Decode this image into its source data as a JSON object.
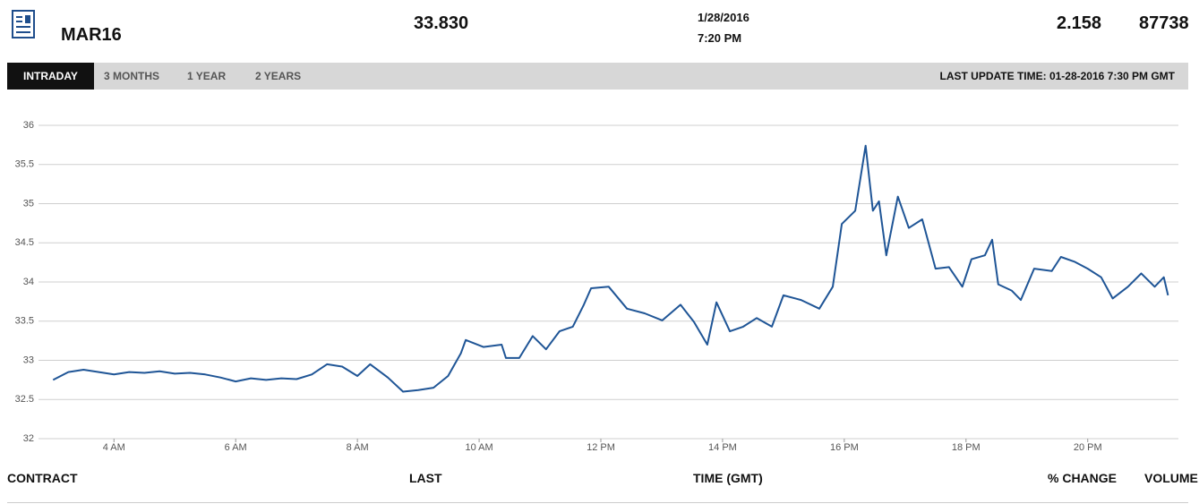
{
  "header": {
    "contract": "MAR16",
    "last": "33.830",
    "date": "1/28/2016",
    "time": "7:20 PM",
    "change": "2.158",
    "volume": "87738"
  },
  "tabs": [
    "INTRADAY",
    "3 MONTHS",
    "1 YEAR",
    "2 YEARS"
  ],
  "active_tab": 0,
  "last_update": "LAST UPDATE TIME: 01-28-2016 7:30 PM GMT",
  "chart_data": {
    "type": "line",
    "color": "#1f5596",
    "grid": true,
    "x": [
      3,
      3.25,
      3.5,
      3.75,
      4,
      4.25,
      4.5,
      4.75,
      5,
      5.25,
      5.5,
      5.75,
      6,
      6.25,
      6.5,
      6.75,
      7,
      7.25,
      7.5,
      7.75,
      8,
      8.21,
      8.5,
      8.75,
      9,
      9.25,
      9.49,
      9.7,
      9.78,
      10.07,
      10.37,
      10.44,
      10.66,
      10.88,
      11.1,
      11.32,
      11.54,
      11.72,
      11.84,
      12.13,
      12.43,
      12.72,
      13.01,
      13.31,
      13.53,
      13.75,
      13.9,
      14.12,
      14.34,
      14.56,
      14.81,
      15,
      15.29,
      15.59,
      15.81,
      15.96,
      16.18,
      16.35,
      16.47,
      16.57,
      16.69,
      16.88,
      17.06,
      17.28,
      17.5,
      17.72,
      17.94,
      18.09,
      18.31,
      18.43,
      18.53,
      18.75,
      18.9,
      19.12,
      19.41,
      19.56,
      19.78,
      20,
      20.22,
      20.41,
      20.66,
      20.88,
      21.1,
      21.25,
      21.32
    ],
    "values": [
      32.75,
      32.85,
      32.88,
      32.85,
      32.82,
      32.85,
      32.84,
      32.86,
      32.83,
      32.84,
      32.82,
      32.78,
      32.73,
      32.77,
      32.75,
      32.77,
      32.76,
      32.82,
      32.95,
      32.92,
      32.8,
      32.95,
      32.78,
      32.6,
      32.62,
      32.65,
      32.8,
      33.09,
      33.26,
      33.17,
      33.2,
      33.03,
      33.03,
      33.31,
      33.14,
      33.37,
      33.43,
      33.71,
      33.92,
      33.94,
      33.66,
      33.6,
      33.51,
      33.71,
      33.49,
      33.2,
      33.74,
      33.37,
      33.43,
      33.54,
      33.43,
      33.83,
      33.77,
      33.66,
      33.94,
      34.74,
      34.91,
      35.74,
      34.91,
      35.03,
      34.34,
      35.09,
      34.69,
      34.8,
      34.17,
      34.19,
      33.94,
      34.29,
      34.34,
      34.54,
      33.97,
      33.89,
      33.77,
      34.17,
      34.14,
      34.32,
      34.26,
      34.17,
      34.06,
      33.79,
      33.94,
      34.11,
      33.94,
      34.06,
      33.83
    ],
    "xlim": [
      2.76,
      21.49
    ],
    "xticks": [
      {
        "value": 4,
        "label": "4 AM"
      },
      {
        "value": 6,
        "label": "6 AM"
      },
      {
        "value": 8,
        "label": "8 AM"
      },
      {
        "value": 10,
        "label": "10 AM"
      },
      {
        "value": 12,
        "label": "12 PM"
      },
      {
        "value": 14,
        "label": "14 PM"
      },
      {
        "value": 16,
        "label": "16 PM"
      },
      {
        "value": 18,
        "label": "18 PM"
      },
      {
        "value": 20,
        "label": "20 PM"
      }
    ],
    "ylim": [
      32,
      36
    ],
    "yticks": [
      32,
      32.5,
      33,
      33.5,
      34,
      34.5,
      35,
      35.5,
      36
    ]
  },
  "columns": [
    "CONTRACT",
    "LAST",
    "TIME (GMT)",
    "% CHANGE",
    "VOLUME"
  ]
}
